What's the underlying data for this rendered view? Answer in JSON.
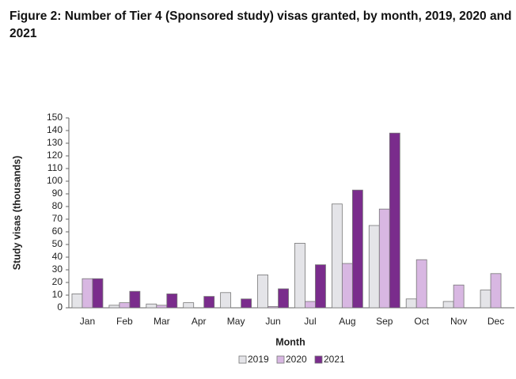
{
  "chart_data": {
    "type": "bar",
    "title": "Figure 2: Number of Tier 4 (Sponsored study) visas granted, by month, 2019, 2020 and 2021",
    "x_label": "Month",
    "y_label": "Study visas (thousands)",
    "categories": [
      "Jan",
      "Feb",
      "Mar",
      "Apr",
      "May",
      "Jun",
      "Jul",
      "Aug",
      "Sep",
      "Oct",
      "Nov",
      "Dec"
    ],
    "series": [
      {
        "name": "2019",
        "color": "#e4e4e8",
        "values": [
          11,
          2,
          3,
          4,
          12,
          26,
          51,
          82,
          65,
          7,
          5,
          14
        ]
      },
      {
        "name": "2020",
        "color": "#d8b7e2",
        "values": [
          23,
          4,
          2,
          0,
          0,
          1,
          5,
          35,
          78,
          38,
          18,
          27
        ]
      },
      {
        "name": "2021",
        "color": "#7a2c8c",
        "values": [
          23,
          13,
          11,
          9,
          7,
          15,
          34,
          93,
          138,
          null,
          null,
          null
        ]
      }
    ],
    "ylim": [
      0,
      150
    ],
    "yticks": [
      0,
      10,
      20,
      30,
      40,
      50,
      60,
      70,
      80,
      90,
      100,
      110,
      120,
      130,
      140,
      150
    ],
    "grid": false,
    "legend": "bottom"
  }
}
